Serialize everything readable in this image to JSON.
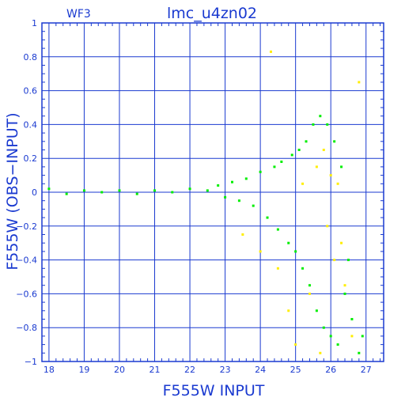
{
  "chart_data": {
    "type": "scatter",
    "title": "lmc_u4zn02",
    "subtitle": "WF3",
    "xlabel": "F555W INPUT",
    "ylabel": "F555W (OBS−INPUT)",
    "xlim": [
      17.8,
      27.5
    ],
    "ylim": [
      -1,
      1
    ],
    "xticks": [
      18,
      19,
      20,
      21,
      22,
      23,
      24,
      25,
      26,
      27
    ],
    "xtick_labels": [
      "18",
      "19",
      "20",
      "21",
      "22",
      "23",
      "24",
      "25",
      "26",
      "27"
    ],
    "yticks": [
      -1,
      -0.8,
      -0.6,
      -0.4,
      -0.2,
      0,
      0.2,
      0.4,
      0.6,
      0.8,
      1
    ],
    "ytick_labels": [
      "−1",
      "−0.8",
      "−0.6",
      "−0.4",
      "−0.2",
      "0",
      "0.2",
      "0.4",
      "0.6",
      "0.8",
      "1"
    ],
    "grid": true,
    "colors": {
      "axes": "#1a3ad0",
      "grid": "#1a3ad0"
    },
    "series": [
      {
        "color": "#00ee00",
        "points": [
          [
            18.0,
            0.02
          ],
          [
            18.5,
            -0.01
          ],
          [
            19.0,
            0.01
          ],
          [
            19.5,
            0.0
          ],
          [
            20.0,
            0.01
          ],
          [
            20.5,
            -0.01
          ],
          [
            21.0,
            0.01
          ],
          [
            21.5,
            0.0
          ],
          [
            22.0,
            0.02
          ],
          [
            22.5,
            0.01
          ],
          [
            22.8,
            0.04
          ],
          [
            23.0,
            -0.03
          ],
          [
            23.2,
            0.06
          ],
          [
            23.4,
            -0.05
          ],
          [
            23.6,
            0.08
          ],
          [
            23.8,
            -0.08
          ],
          [
            24.0,
            0.12
          ],
          [
            24.2,
            -0.15
          ],
          [
            24.4,
            0.15
          ],
          [
            24.5,
            -0.22
          ],
          [
            24.6,
            0.18
          ],
          [
            24.8,
            -0.3
          ],
          [
            24.9,
            0.22
          ],
          [
            25.0,
            -0.35
          ],
          [
            25.1,
            0.25
          ],
          [
            25.2,
            -0.45
          ],
          [
            25.3,
            0.3
          ],
          [
            25.4,
            -0.55
          ],
          [
            25.5,
            0.4
          ],
          [
            25.6,
            -0.7
          ],
          [
            25.7,
            0.45
          ],
          [
            25.8,
            -0.8
          ],
          [
            25.9,
            0.4
          ],
          [
            26.0,
            -0.85
          ],
          [
            26.1,
            0.3
          ],
          [
            26.2,
            -0.9
          ],
          [
            26.3,
            0.15
          ],
          [
            26.4,
            -0.6
          ],
          [
            26.5,
            -0.4
          ],
          [
            26.6,
            -0.75
          ],
          [
            26.8,
            -0.95
          ],
          [
            26.9,
            -0.85
          ]
        ]
      },
      {
        "color": "#ffee00",
        "points": [
          [
            23.5,
            -0.25
          ],
          [
            24.0,
            -0.35
          ],
          [
            24.3,
            0.83
          ],
          [
            24.5,
            -0.45
          ],
          [
            24.8,
            -0.7
          ],
          [
            25.0,
            -0.9
          ],
          [
            25.2,
            0.05
          ],
          [
            25.4,
            -0.6
          ],
          [
            25.6,
            0.15
          ],
          [
            25.7,
            -0.95
          ],
          [
            25.8,
            0.25
          ],
          [
            25.9,
            -0.2
          ],
          [
            26.0,
            0.1
          ],
          [
            26.1,
            -0.4
          ],
          [
            26.2,
            0.05
          ],
          [
            26.3,
            -0.3
          ],
          [
            26.4,
            -0.55
          ],
          [
            26.6,
            -0.85
          ],
          [
            26.8,
            0.65
          ]
        ]
      }
    ]
  }
}
